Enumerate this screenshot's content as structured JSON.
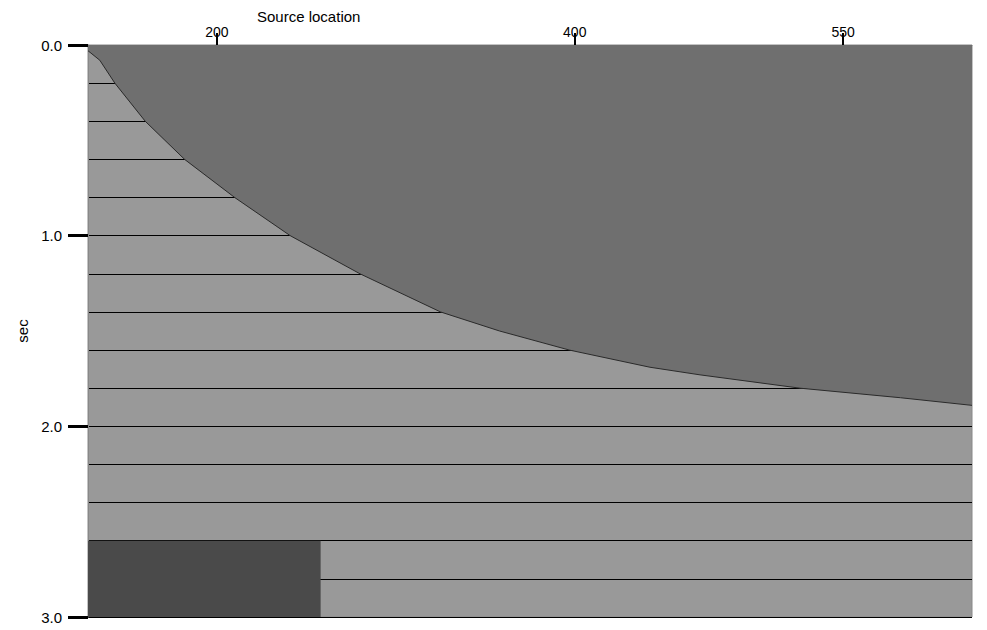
{
  "chart_data": {
    "type": "line",
    "x_label": "Source location",
    "y_label": "sec",
    "xlim": [
      128,
      622
    ],
    "xticks": [
      200,
      400,
      550
    ],
    "ylim": [
      0,
      3
    ],
    "yticks": [
      {
        "value": 0,
        "label": "0.0"
      },
      {
        "value": 1,
        "label": "1.0"
      },
      {
        "value": 2,
        "label": "2.0"
      },
      {
        "value": 3,
        "label": "3.0"
      }
    ],
    "grid": true,
    "color": "#6f6f6f",
    "x": [
      128,
      134.6,
      143,
      160,
      182,
      210,
      241,
      280,
      325,
      358,
      397,
      442,
      470,
      526,
      582,
      622
    ],
    "values": [
      0.03,
      0.08,
      0.2,
      0.4,
      0.6,
      0.8,
      1.0,
      1.2,
      1.4,
      1.5,
      1.6,
      1.69,
      1.73,
      1.8,
      1.85,
      1.89
    ],
    "artifact": {
      "x": [
        128,
        258
      ],
      "y": [
        2.6,
        3.0
      ]
    }
  }
}
